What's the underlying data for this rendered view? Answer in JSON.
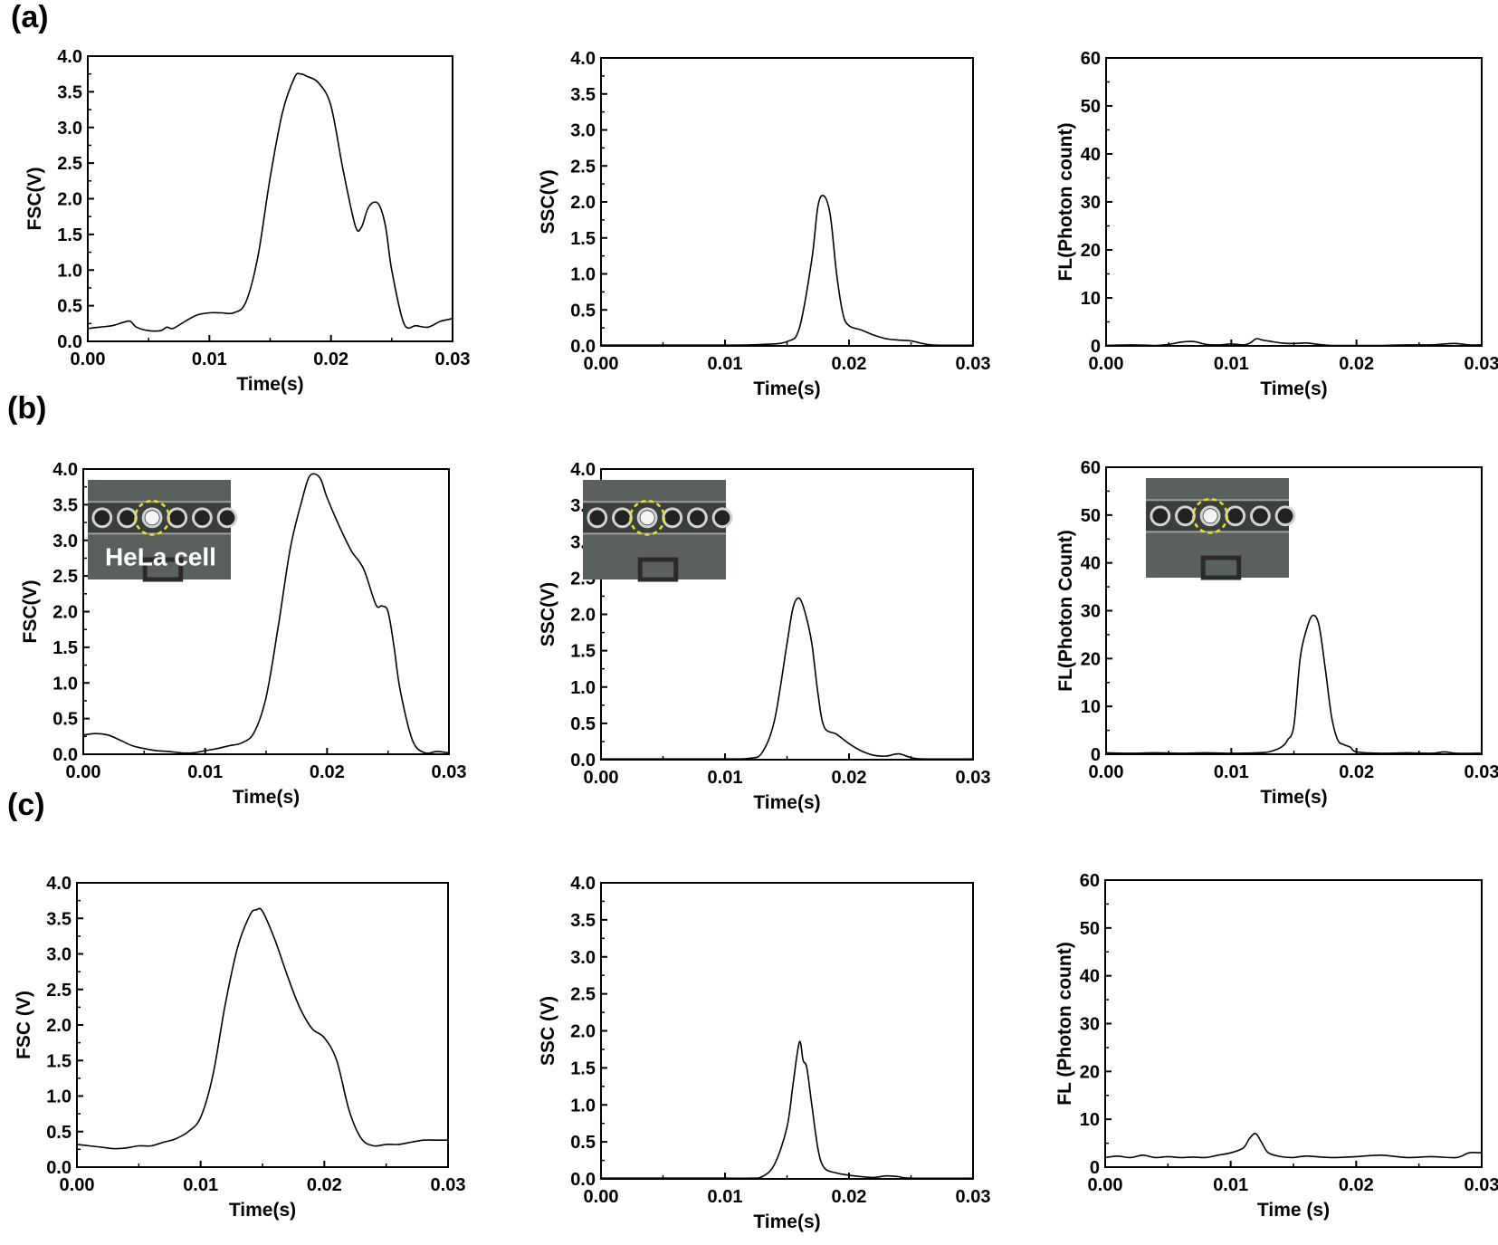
{
  "panel_labels": [
    "(a)",
    "(b)",
    "(c)"
  ],
  "inset_caption": "HeLa cell",
  "chart_data": [
    {
      "id": "a1",
      "type": "line",
      "xlabel": "Time(s)",
      "ylabel": "FSC(V)",
      "xlim": [
        0,
        0.03
      ],
      "ylim": [
        0,
        4.0
      ],
      "xticks": [
        "0.00",
        "0.01",
        "0.02",
        "0.03"
      ],
      "yticks": [
        "0.0",
        "0.5",
        "1.0",
        "1.5",
        "2.0",
        "2.5",
        "3.0",
        "3.5",
        "4.0"
      ],
      "x": [
        0,
        0.001,
        0.002,
        0.003,
        0.0035,
        0.004,
        0.005,
        0.006,
        0.0065,
        0.007,
        0.008,
        0.009,
        0.01,
        0.011,
        0.012,
        0.013,
        0.014,
        0.015,
        0.016,
        0.017,
        0.0175,
        0.018,
        0.019,
        0.02,
        0.021,
        0.022,
        0.0225,
        0.023,
        0.0235,
        0.024,
        0.0245,
        0.025,
        0.026,
        0.027,
        0.028,
        0.029,
        0.03
      ],
      "y": [
        0.18,
        0.2,
        0.22,
        0.27,
        0.28,
        0.2,
        0.15,
        0.15,
        0.2,
        0.18,
        0.28,
        0.37,
        0.4,
        0.4,
        0.4,
        0.55,
        1.2,
        2.3,
        3.2,
        3.7,
        3.75,
        3.72,
        3.62,
        3.3,
        2.4,
        1.62,
        1.6,
        1.85,
        1.95,
        1.9,
        1.6,
        1.0,
        0.25,
        0.22,
        0.2,
        0.28,
        0.32
      ],
      "inset": false
    },
    {
      "id": "a2",
      "type": "line",
      "xlabel": "Time(s)",
      "ylabel": "SSC(V)",
      "xlim": [
        0,
        0.03
      ],
      "ylim": [
        0,
        4.0
      ],
      "xticks": [
        "0.00",
        "0.01",
        "0.02",
        "0.03"
      ],
      "yticks": [
        "0.0",
        "0.5",
        "1.0",
        "1.5",
        "2.0",
        "2.5",
        "3.0",
        "3.5",
        "4.0"
      ],
      "x": [
        0,
        0.005,
        0.01,
        0.013,
        0.015,
        0.016,
        0.017,
        0.0175,
        0.018,
        0.0185,
        0.019,
        0.0195,
        0.02,
        0.021,
        0.022,
        0.023,
        0.024,
        0.025,
        0.026,
        0.027,
        0.03
      ],
      "y": [
        0.01,
        0.01,
        0.01,
        0.02,
        0.06,
        0.25,
        1.2,
        1.95,
        2.08,
        1.8,
        1.0,
        0.45,
        0.28,
        0.22,
        0.15,
        0.1,
        0.08,
        0.07,
        0.03,
        0.01,
        0.01
      ],
      "inset": false
    },
    {
      "id": "a3",
      "type": "line",
      "xlabel": "Time(s)",
      "ylabel": "FL(Photon count)",
      "xlim": [
        0,
        0.03
      ],
      "ylim": [
        0,
        60
      ],
      "xticks": [
        "0.00",
        "0.01",
        "0.02",
        "0.03"
      ],
      "yticks": [
        "0",
        "10",
        "20",
        "30",
        "40",
        "50",
        "60"
      ],
      "x": [
        0,
        0.002,
        0.004,
        0.005,
        0.006,
        0.007,
        0.008,
        0.009,
        0.01,
        0.011,
        0.0115,
        0.012,
        0.0125,
        0.013,
        0.014,
        0.015,
        0.016,
        0.017,
        0.018,
        0.02,
        0.022,
        0.024,
        0.026,
        0.027,
        0.028,
        0.029,
        0.03
      ],
      "y": [
        0.1,
        0.2,
        0.1,
        0.3,
        0.8,
        0.9,
        0.3,
        0.2,
        0.4,
        0.2,
        0.6,
        1.5,
        1.2,
        1.0,
        0.6,
        0.5,
        0.6,
        0.3,
        0.1,
        0.1,
        0.1,
        0.2,
        0.2,
        0.4,
        0.5,
        0.2,
        0.2
      ],
      "inset": false
    },
    {
      "id": "b1",
      "type": "line",
      "xlabel": "Time(s)",
      "ylabel": "FSC(V)",
      "xlim": [
        0,
        0.03
      ],
      "ylim": [
        0,
        4.0
      ],
      "xticks": [
        "0.00",
        "0.01",
        "0.02",
        "0.03"
      ],
      "yticks": [
        "0.0",
        "0.5",
        "1.0",
        "1.5",
        "2.0",
        "2.5",
        "3.0",
        "3.5",
        "4.0"
      ],
      "x": [
        0,
        0.001,
        0.002,
        0.003,
        0.004,
        0.005,
        0.006,
        0.007,
        0.008,
        0.009,
        0.01,
        0.011,
        0.012,
        0.013,
        0.014,
        0.015,
        0.016,
        0.017,
        0.018,
        0.0185,
        0.019,
        0.0195,
        0.02,
        0.021,
        0.022,
        0.023,
        0.024,
        0.0245,
        0.025,
        0.0255,
        0.026,
        0.027,
        0.028,
        0.029,
        0.03
      ],
      "y": [
        0.27,
        0.29,
        0.27,
        0.2,
        0.12,
        0.08,
        0.05,
        0.04,
        0.02,
        0.02,
        0.05,
        0.08,
        0.12,
        0.16,
        0.3,
        0.8,
        1.8,
        2.9,
        3.6,
        3.88,
        3.93,
        3.85,
        3.6,
        3.2,
        2.85,
        2.6,
        2.1,
        2.08,
        2.0,
        1.5,
        0.9,
        0.2,
        0.02,
        0.04,
        0.02
      ],
      "inset": true,
      "inset_caption": true
    },
    {
      "id": "b2",
      "type": "line",
      "xlabel": "Time(s)",
      "ylabel": "SSC(V)",
      "xlim": [
        0,
        0.03
      ],
      "ylim": [
        0,
        4.0
      ],
      "xticks": [
        "0.00",
        "0.01",
        "0.02",
        "0.03"
      ],
      "yticks": [
        "0.0",
        "0.5",
        "1.0",
        "1.5",
        "2.0",
        "2.5",
        "3.0",
        "3.5",
        "4.0"
      ],
      "x": [
        0,
        0.005,
        0.01,
        0.012,
        0.013,
        0.014,
        0.015,
        0.0155,
        0.016,
        0.0165,
        0.017,
        0.0175,
        0.018,
        0.019,
        0.02,
        0.021,
        0.022,
        0.023,
        0.024,
        0.025,
        0.026,
        0.03
      ],
      "y": [
        0.01,
        0.01,
        0.01,
        0.02,
        0.1,
        0.55,
        1.6,
        2.1,
        2.22,
        2.0,
        1.6,
        0.9,
        0.45,
        0.35,
        0.22,
        0.12,
        0.06,
        0.05,
        0.08,
        0.03,
        0.01,
        0.01
      ],
      "inset": true,
      "inset_caption": false
    },
    {
      "id": "b3",
      "type": "line",
      "xlabel": "Time(s)",
      "ylabel": "FL(Photon Count)",
      "xlim": [
        0,
        0.03
      ],
      "ylim": [
        0,
        60
      ],
      "xticks": [
        "0.00",
        "0.01",
        "0.02",
        "0.03"
      ],
      "yticks": [
        "0",
        "10",
        "20",
        "30",
        "40",
        "50",
        "60"
      ],
      "x": [
        0,
        0.002,
        0.004,
        0.006,
        0.008,
        0.01,
        0.012,
        0.013,
        0.014,
        0.0145,
        0.015,
        0.0155,
        0.016,
        0.0165,
        0.017,
        0.0175,
        0.018,
        0.0185,
        0.019,
        0.0195,
        0.02,
        0.022,
        0.024,
        0.026,
        0.027,
        0.028,
        0.03
      ],
      "y": [
        0.3,
        0.2,
        0.3,
        0.2,
        0.3,
        0.2,
        0.3,
        0.5,
        1.5,
        3,
        6,
        20,
        26,
        29,
        27,
        18,
        8,
        3,
        2,
        1.5,
        0.5,
        0.2,
        0.3,
        0.2,
        0.5,
        0.2,
        0.2
      ],
      "inset": true,
      "inset_caption": false
    },
    {
      "id": "c1",
      "type": "line",
      "xlabel": "Time(s)",
      "ylabel": "FSC (V)",
      "xlim": [
        0,
        0.03
      ],
      "ylim": [
        0,
        4.0
      ],
      "xticks": [
        "0.00",
        "0.01",
        "0.02",
        "0.03"
      ],
      "yticks": [
        "0.0",
        "0.5",
        "1.0",
        "1.5",
        "2.0",
        "2.5",
        "3.0",
        "3.5",
        "4.0"
      ],
      "x": [
        0,
        0.001,
        0.002,
        0.003,
        0.004,
        0.005,
        0.006,
        0.007,
        0.008,
        0.009,
        0.01,
        0.011,
        0.012,
        0.013,
        0.014,
        0.0145,
        0.015,
        0.016,
        0.017,
        0.018,
        0.019,
        0.02,
        0.021,
        0.022,
        0.023,
        0.024,
        0.025,
        0.026,
        0.027,
        0.028,
        0.029,
        0.03
      ],
      "y": [
        0.32,
        0.3,
        0.28,
        0.26,
        0.27,
        0.3,
        0.3,
        0.35,
        0.4,
        0.5,
        0.7,
        1.3,
        2.3,
        3.1,
        3.55,
        3.62,
        3.6,
        3.2,
        2.7,
        2.25,
        1.95,
        1.82,
        1.5,
        0.8,
        0.4,
        0.3,
        0.32,
        0.32,
        0.35,
        0.38,
        0.38,
        0.38
      ],
      "inset": false
    },
    {
      "id": "c2",
      "type": "line",
      "xlabel": "Time(s)",
      "ylabel": "SSC (V)",
      "xlim": [
        0,
        0.03
      ],
      "ylim": [
        0,
        4.0
      ],
      "xticks": [
        "0.00",
        "0.01",
        "0.02",
        "0.03"
      ],
      "yticks": [
        "0.0",
        "0.5",
        "1.0",
        "1.5",
        "2.0",
        "2.5",
        "3.0",
        "3.5",
        "4.0"
      ],
      "x": [
        0,
        0.005,
        0.01,
        0.012,
        0.013,
        0.014,
        0.015,
        0.0155,
        0.016,
        0.0163,
        0.0166,
        0.017,
        0.0175,
        0.018,
        0.019,
        0.02,
        0.021,
        0.022,
        0.023,
        0.024,
        0.025,
        0.03
      ],
      "y": [
        0.01,
        0.01,
        0.01,
        0.01,
        0.03,
        0.2,
        0.7,
        1.3,
        1.85,
        1.6,
        1.5,
        1.0,
        0.4,
        0.15,
        0.08,
        0.05,
        0.03,
        0.02,
        0.04,
        0.03,
        0.01,
        0.01
      ],
      "inset": false
    },
    {
      "id": "c3",
      "type": "line",
      "xlabel": "Time (s)",
      "ylabel": "FL (Photon count)",
      "xlim": [
        0,
        0.03
      ],
      "ylim": [
        0,
        60
      ],
      "xticks": [
        "0.00",
        "0.01",
        "0.02",
        "0.03"
      ],
      "yticks": [
        "0",
        "10",
        "20",
        "30",
        "40",
        "50",
        "60"
      ],
      "x": [
        0,
        0.001,
        0.002,
        0.003,
        0.004,
        0.005,
        0.006,
        0.007,
        0.008,
        0.009,
        0.01,
        0.011,
        0.0115,
        0.012,
        0.0125,
        0.013,
        0.014,
        0.015,
        0.016,
        0.018,
        0.02,
        0.022,
        0.024,
        0.026,
        0.028,
        0.029,
        0.03
      ],
      "y": [
        2,
        2.3,
        2,
        2.5,
        2,
        2.2,
        2,
        2.1,
        2,
        2.5,
        3,
        4,
        6,
        7,
        5,
        3,
        2.2,
        2,
        2.3,
        2,
        2.2,
        2.5,
        2,
        2.2,
        2,
        3,
        3
      ],
      "inset": false
    }
  ]
}
